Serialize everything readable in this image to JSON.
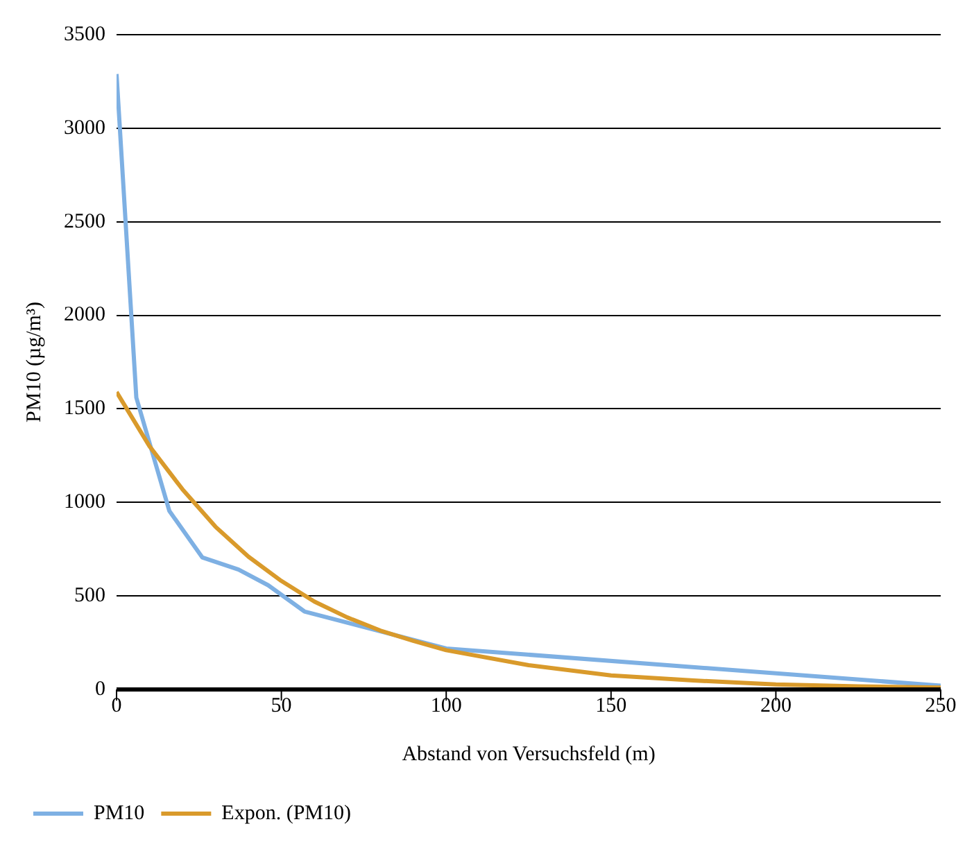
{
  "chart_data": {
    "type": "line",
    "xlabel": "Abstand von Versuchsfeld (m)",
    "ylabel": "PM10 (µg/m³)",
    "xlim": [
      0,
      250
    ],
    "xticks": [
      0,
      50,
      100,
      150,
      200,
      250
    ],
    "ylim": [
      0,
      3500
    ],
    "yticks": [
      0,
      500,
      1000,
      1500,
      2000,
      2500,
      3000,
      3500
    ],
    "grid": "y",
    "legend": "bottom left",
    "marker": "none",
    "series": [
      {
        "name": "PM10",
        "color": "#7eb0e3",
        "x": [
          0,
          6,
          16,
          26,
          37,
          46,
          57,
          100,
          250
        ],
        "values": [
          3290,
          1560,
          955,
          706,
          641,
          557,
          417,
          219,
          20
        ]
      },
      {
        "name": "Expon. (PM10)",
        "color": "#d99a2b",
        "x": [
          0,
          10,
          20,
          30,
          40,
          50,
          60,
          70,
          80,
          90,
          100,
          125,
          150,
          175,
          200,
          225,
          250
        ],
        "values": [
          1590,
          1300,
          1070,
          870,
          710,
          580,
          470,
          385,
          315,
          260,
          210,
          130,
          75,
          48,
          27,
          17,
          10
        ]
      }
    ]
  }
}
